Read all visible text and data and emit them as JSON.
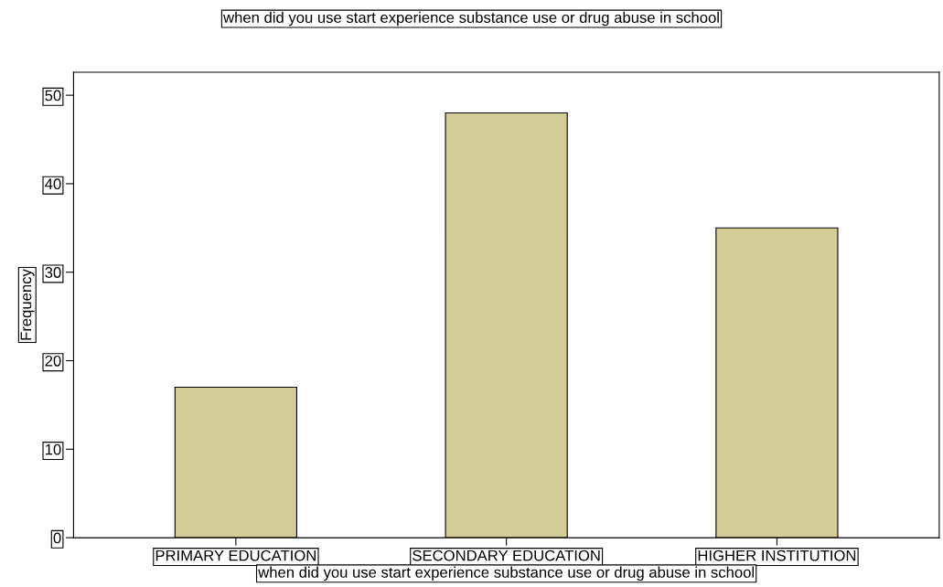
{
  "chart_data": {
    "type": "bar",
    "title": "when did you use start experience substance use or drug abuse in school",
    "xlabel": "when did you use start experience substance use or drug abuse in school",
    "ylabel": "Frequency",
    "categories": [
      "PRIMARY EDUCATION",
      "SECONDARY EDUCATION",
      "HIGHER INSTITUTION"
    ],
    "values": [
      17,
      48,
      35
    ],
    "color": "#d3cd98",
    "ylim": [
      0,
      52.6
    ],
    "yticks": [
      0,
      10,
      20,
      30,
      40,
      50
    ],
    "grid": false,
    "legend": false
  }
}
